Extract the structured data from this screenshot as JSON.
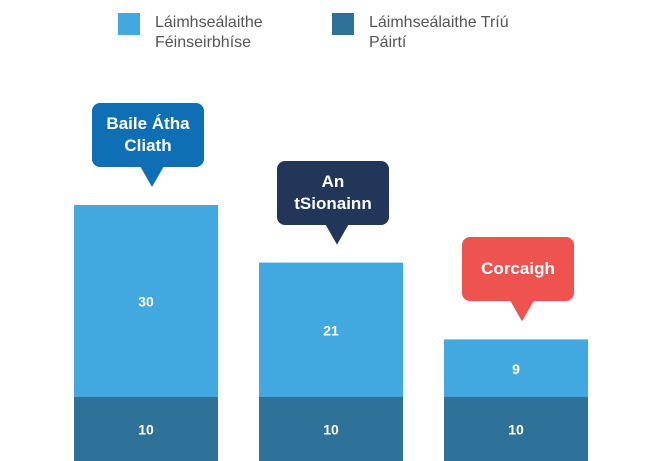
{
  "chart_data": {
    "type": "stacked-bar",
    "categories": [
      "Baile Átha Cliath",
      "An tSionainn",
      "Corcaigh"
    ],
    "category_colors": [
      "#0f6fb5",
      "#22365a",
      "#ef5350"
    ],
    "series": [
      {
        "name": "Láimhseálaithe Féinseirbhíse",
        "color": "#41a8e0",
        "values": [
          30,
          21,
          9
        ]
      },
      {
        "name": "Láimhseálaithe Tríú Páirtí",
        "color": "#2e7199",
        "values": [
          10,
          10,
          10
        ]
      }
    ]
  }
}
